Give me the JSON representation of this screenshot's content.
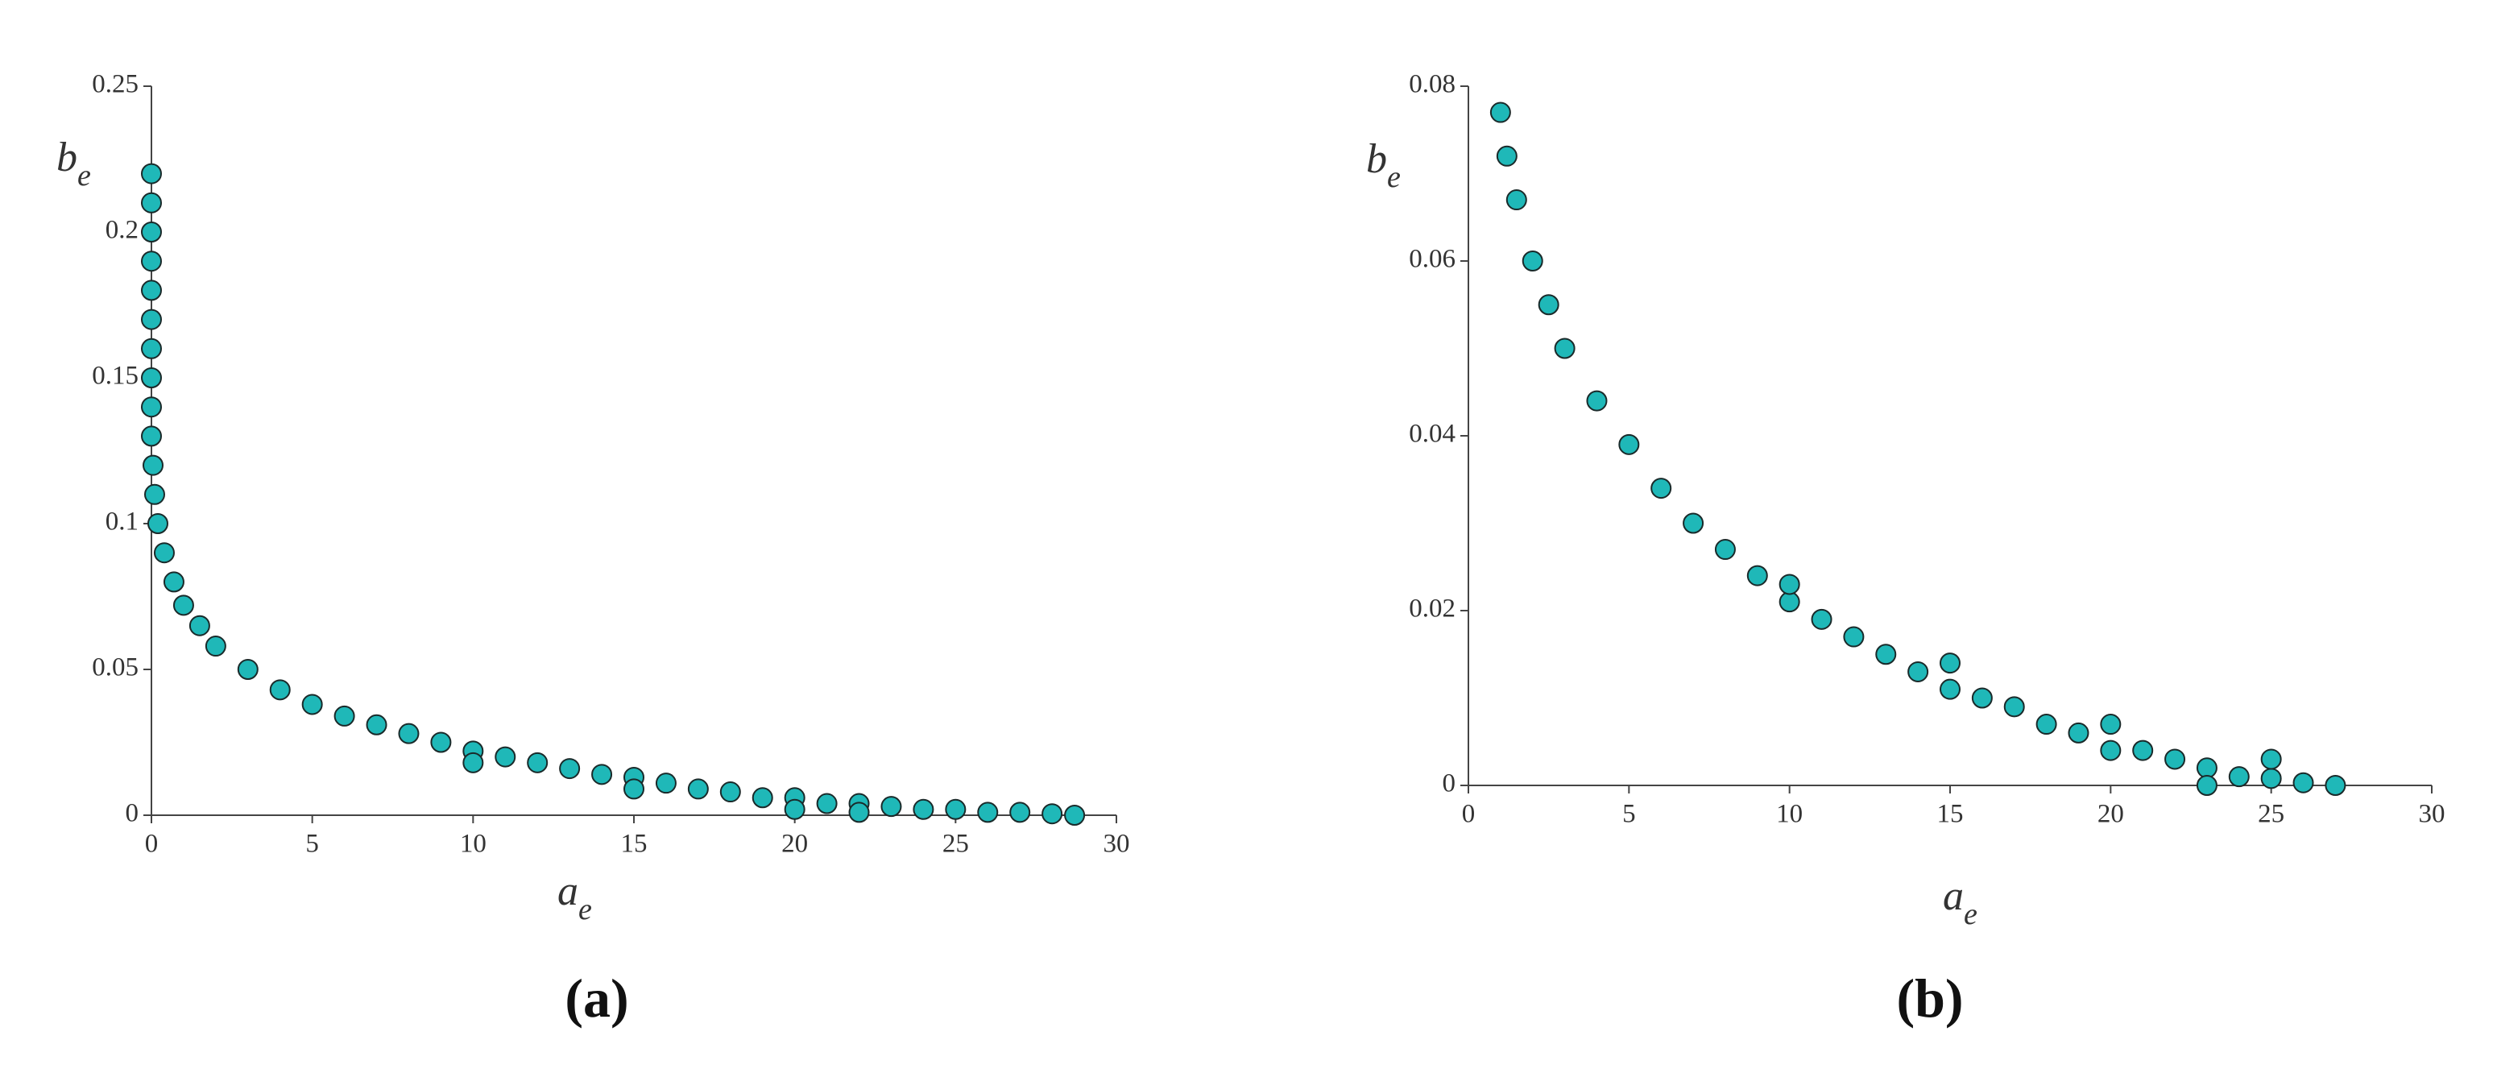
{
  "chart_data": [
    {
      "type": "scatter",
      "panel_label": "(a)",
      "xlabel": {
        "text": "a",
        "subscript": "e"
      },
      "ylabel": {
        "text": "b",
        "subscript": "e"
      },
      "color": "#1fb8b8",
      "x": [
        0,
        0,
        0,
        0,
        0,
        0,
        0,
        0,
        0,
        0,
        0.05,
        0.1,
        0.2,
        0.4,
        0.7,
        1,
        1.5,
        2,
        3,
        4,
        5,
        6,
        7,
        8,
        9,
        10,
        10,
        11,
        12,
        13,
        14,
        15,
        15,
        16,
        17,
        18,
        19,
        20,
        20,
        21,
        22,
        22,
        23,
        24,
        25,
        26,
        27,
        28,
        28.7
      ],
      "values": [
        0.22,
        0.21,
        0.2,
        0.19,
        0.18,
        0.17,
        0.16,
        0.15,
        0.14,
        0.13,
        0.12,
        0.11,
        0.1,
        0.09,
        0.08,
        0.072,
        0.065,
        0.058,
        0.05,
        0.043,
        0.038,
        0.034,
        0.031,
        0.028,
        0.025,
        0.022,
        0.018,
        0.02,
        0.018,
        0.016,
        0.014,
        0.013,
        0.009,
        0.011,
        0.009,
        0.008,
        0.006,
        0.006,
        0.002,
        0.004,
        0.004,
        0.001,
        0.003,
        0.002,
        0.002,
        0.001,
        0.001,
        0.0005,
        0
      ],
      "xlim": [
        0,
        30
      ],
      "xticks": [
        0,
        5,
        10,
        15,
        20,
        25,
        30
      ],
      "ylim": [
        0,
        0.25
      ],
      "yticks": [
        0,
        0.05,
        0.1,
        0.15,
        0.2,
        0.25
      ]
    },
    {
      "type": "scatter",
      "panel_label": "(b)",
      "xlabel": {
        "text": "a",
        "subscript": "e"
      },
      "ylabel": {
        "text": "b",
        "subscript": "e"
      },
      "color": "#1fb8b8",
      "x": [
        1,
        1.2,
        1.5,
        2,
        2.5,
        3,
        4,
        5,
        6,
        7,
        8,
        9,
        10,
        10,
        11,
        12,
        13,
        14,
        15,
        15,
        16,
        17,
        18,
        19,
        20,
        20,
        21,
        22,
        23,
        23,
        24,
        25,
        25,
        26,
        27
      ],
      "values": [
        0.077,
        0.072,
        0.067,
        0.06,
        0.055,
        0.05,
        0.044,
        0.039,
        0.034,
        0.03,
        0.027,
        0.024,
        0.021,
        0.023,
        0.019,
        0.017,
        0.015,
        0.013,
        0.011,
        0.014,
        0.01,
        0.009,
        0.007,
        0.006,
        0.004,
        0.007,
        0.004,
        0.003,
        0.002,
        0,
        0.001,
        0.0008,
        0.003,
        0.0003,
        0
      ],
      "xlim": [
        0,
        30
      ],
      "xticks": [
        0,
        5,
        10,
        15,
        20,
        25,
        30
      ],
      "ylim": [
        0,
        0.08
      ],
      "yticks": [
        0,
        0.02,
        0.04,
        0.06,
        0.08
      ]
    }
  ]
}
